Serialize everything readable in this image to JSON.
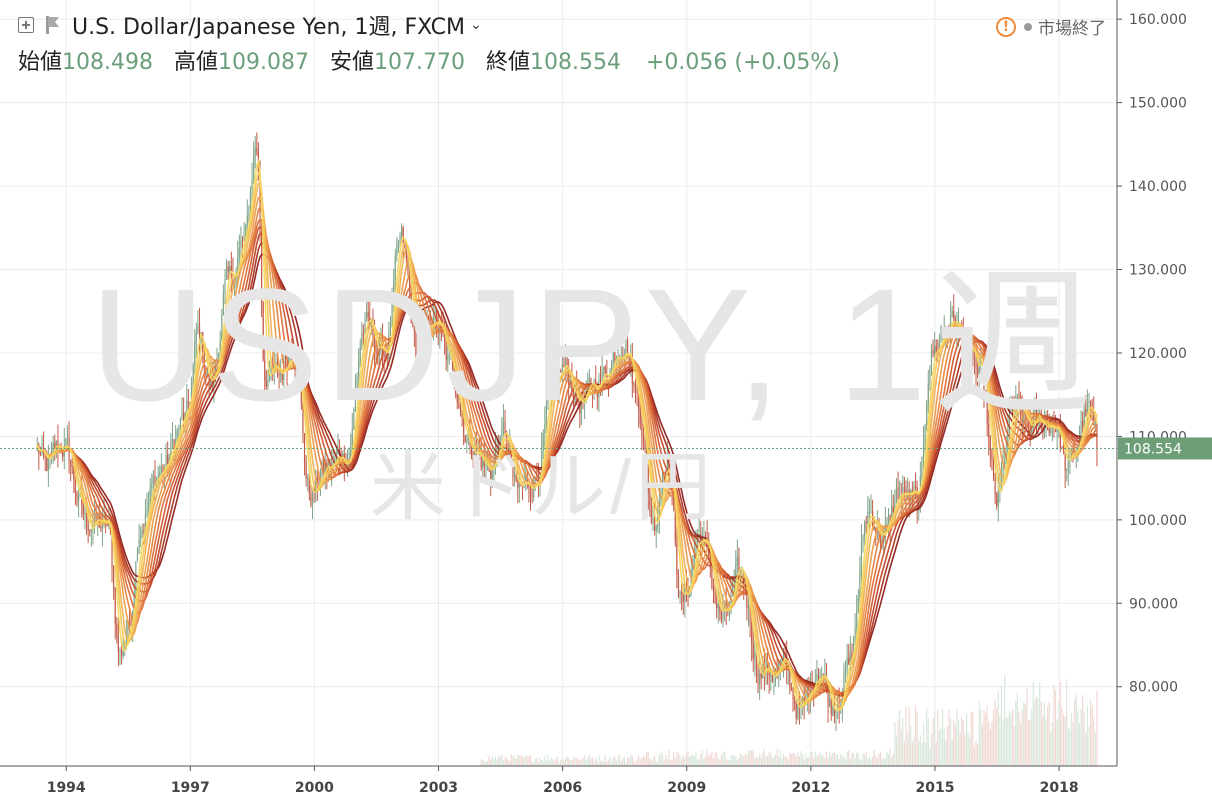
{
  "header": {
    "symbol": "U.S. Dollar/Japanese Yen, 1週, FXCM",
    "ohlc": [
      {
        "label": "始値",
        "value": "108.498"
      },
      {
        "label": "高値",
        "value": "109.087"
      },
      {
        "label": "安値",
        "value": "107.770"
      },
      {
        "label": "終値",
        "value": "108.554"
      }
    ],
    "change": "+0.056 (+0.05%)"
  },
  "market_status": "市場終了",
  "watermark": {
    "line1": "USDJPY, 1週",
    "line2": "米ドル/円"
  },
  "last_price_label": "108.554",
  "colors": {
    "up": "#7fa58a",
    "down": "#c45a47",
    "last_price": "#6d9e78",
    "ribbon": [
      "#8f1f1a",
      "#a8301f",
      "#bf4326",
      "#d0582e",
      "#dc6d36",
      "#e5833f",
      "#ec9a49",
      "#f1b152",
      "#f4c659",
      "#f6d85f"
    ]
  },
  "chart_data": {
    "type": "line",
    "x_ticks": [
      "1994",
      "1997",
      "2000",
      "2003",
      "2006",
      "2009",
      "2012",
      "2015",
      "2018"
    ],
    "y_ticks": [
      "80.000",
      "90.000",
      "100.000",
      "110.000",
      "120.000",
      "130.000",
      "140.000",
      "150.000",
      "160.000"
    ],
    "ylim": [
      70.5,
      162.3
    ],
    "xlim": [
      1992.4,
      2019.4
    ],
    "last_price": 108.554,
    "price_anchors": [
      [
        1993.3,
        108.5
      ],
      [
        1993.5,
        106
      ],
      [
        1993.9,
        109
      ],
      [
        1994.5,
        100
      ],
      [
        1995.0,
        99
      ],
      [
        1995.3,
        84
      ],
      [
        1995.5,
        87
      ],
      [
        1995.8,
        100
      ],
      [
        1996.3,
        106
      ],
      [
        1996.9,
        112
      ],
      [
        1997.2,
        122
      ],
      [
        1997.5,
        116
      ],
      [
        1997.9,
        128
      ],
      [
        1998.3,
        133
      ],
      [
        1998.6,
        145
      ],
      [
        1998.8,
        118
      ],
      [
        1999.1,
        117
      ],
      [
        1999.5,
        121
      ],
      [
        1999.9,
        103
      ],
      [
        2000.3,
        106
      ],
      [
        2000.8,
        108
      ],
      [
        2001.2,
        123
      ],
      [
        2001.7,
        120
      ],
      [
        2002.1,
        133
      ],
      [
        2002.5,
        120
      ],
      [
        2002.9,
        124
      ],
      [
        2003.3,
        118
      ],
      [
        2003.8,
        109
      ],
      [
        2004.2,
        106
      ],
      [
        2004.6,
        110
      ],
      [
        2004.9,
        103
      ],
      [
        2005.3,
        105
      ],
      [
        2005.8,
        115
      ],
      [
        2006.0,
        118
      ],
      [
        2006.5,
        114
      ],
      [
        2006.9,
        117
      ],
      [
        2007.5,
        122
      ],
      [
        2007.8,
        115
      ],
      [
        2008.2,
        100
      ],
      [
        2008.5,
        108
      ],
      [
        2008.9,
        90
      ],
      [
        2009.3,
        98
      ],
      [
        2009.9,
        88
      ],
      [
        2010.3,
        93
      ],
      [
        2010.8,
        82
      ],
      [
        2011.3,
        82
      ],
      [
        2011.8,
        77
      ],
      [
        2012.2,
        83
      ],
      [
        2012.5,
        78
      ],
      [
        2012.9,
        82
      ],
      [
        2013.4,
        101
      ],
      [
        2013.8,
        98
      ],
      [
        2014.1,
        103
      ],
      [
        2014.6,
        102
      ],
      [
        2014.9,
        120
      ],
      [
        2015.4,
        124
      ],
      [
        2015.8,
        120
      ],
      [
        2016.1,
        117
      ],
      [
        2016.5,
        102
      ],
      [
        2016.9,
        113
      ],
      [
        2017.3,
        111
      ],
      [
        2017.9,
        112
      ],
      [
        2018.2,
        106
      ],
      [
        2018.7,
        113
      ],
      [
        2018.95,
        108.5
      ]
    ],
    "volume_note": "volume bars appear from 2004 onward, heavier after 2014"
  }
}
